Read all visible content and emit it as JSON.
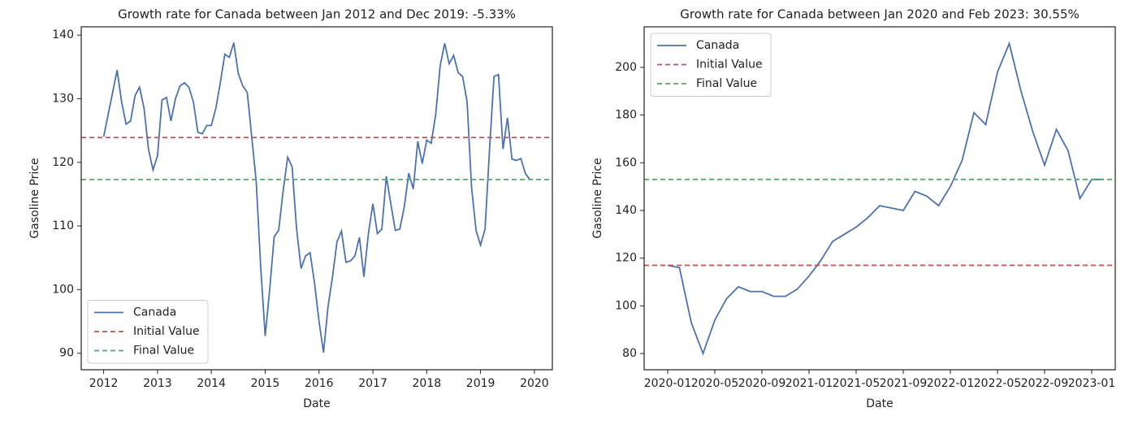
{
  "chart_data": [
    {
      "type": "line",
      "title": "Growth rate for Canada between Jan 2012 and Dec 2019: -5.33%",
      "x_label": "Date",
      "y_label": "Gasoline Price",
      "x": [
        "2012-01",
        "2012-02",
        "2012-03",
        "2012-04",
        "2012-05",
        "2012-06",
        "2012-07",
        "2012-08",
        "2012-09",
        "2012-10",
        "2012-11",
        "2012-12",
        "2013-01",
        "2013-02",
        "2013-03",
        "2013-04",
        "2013-05",
        "2013-06",
        "2013-07",
        "2013-08",
        "2013-09",
        "2013-10",
        "2013-11",
        "2013-12",
        "2014-01",
        "2014-02",
        "2014-03",
        "2014-04",
        "2014-05",
        "2014-06",
        "2014-07",
        "2014-08",
        "2014-09",
        "2014-10",
        "2014-11",
        "2014-12",
        "2015-01",
        "2015-02",
        "2015-03",
        "2015-04",
        "2015-05",
        "2015-06",
        "2015-07",
        "2015-08",
        "2015-09",
        "2015-10",
        "2015-11",
        "2015-12",
        "2016-01",
        "2016-02",
        "2016-03",
        "2016-04",
        "2016-05",
        "2016-06",
        "2016-07",
        "2016-08",
        "2016-09",
        "2016-10",
        "2016-11",
        "2016-12",
        "2017-01",
        "2017-02",
        "2017-03",
        "2017-04",
        "2017-05",
        "2017-06",
        "2017-07",
        "2017-08",
        "2017-09",
        "2017-10",
        "2017-11",
        "2017-12",
        "2018-01",
        "2018-02",
        "2018-03",
        "2018-04",
        "2018-05",
        "2018-06",
        "2018-07",
        "2018-08",
        "2018-09",
        "2018-10",
        "2018-11",
        "2018-12",
        "2019-01",
        "2019-02",
        "2019-03",
        "2019-04",
        "2019-05",
        "2019-06",
        "2019-07",
        "2019-08",
        "2019-09",
        "2019-10",
        "2019-11",
        "2019-12"
      ],
      "series": [
        {
          "name": "Canada",
          "color": "#4c72b0",
          "values": [
            124,
            127.5,
            131,
            134.5,
            129.5,
            126,
            126.5,
            130.5,
            131.8,
            128.5,
            122,
            118.8,
            121,
            129.8,
            130.2,
            126.5,
            130,
            132,
            132.5,
            131.8,
            129.5,
            124.7,
            124.5,
            125.8,
            125.8,
            128.5,
            132.5,
            137,
            136.5,
            138.8,
            134,
            132,
            131,
            124,
            117,
            103.5,
            92.7,
            100,
            108.3,
            109.3,
            115.5,
            120.8,
            119.3,
            109.5,
            103.3,
            105.3,
            105.8,
            101,
            95,
            90.1,
            97.3,
            102,
            107.5,
            109.2,
            104.3,
            104.5,
            105.3,
            108.2,
            102,
            108.8,
            113.5,
            108.8,
            109.5,
            117.8,
            113.5,
            109.3,
            109.5,
            113,
            118.3,
            115.8,
            123.3,
            119.8,
            123.5,
            123,
            127.5,
            135.2,
            138.7,
            135.5,
            136.8,
            134.1,
            133.5,
            129.5,
            116,
            109.3,
            107,
            109.5,
            122,
            133.5,
            133.8,
            122.1,
            127,
            120.5,
            120.3,
            120.6,
            118.2,
            117.3
          ]
        }
      ],
      "hlines": [
        {
          "name": "Initial Value",
          "color": "#c44e52",
          "value": 123.9
        },
        {
          "name": "Final Value",
          "color": "#55a868",
          "value": 117.3
        }
      ],
      "xlim": [
        "2011-08",
        "2020-05"
      ],
      "xticks": [
        {
          "value": "2012-01",
          "label": "2012"
        },
        {
          "value": "2013-01",
          "label": "2013"
        },
        {
          "value": "2014-01",
          "label": "2014"
        },
        {
          "value": "2015-01",
          "label": "2015"
        },
        {
          "value": "2016-01",
          "label": "2016"
        },
        {
          "value": "2017-01",
          "label": "2017"
        },
        {
          "value": "2018-01",
          "label": "2018"
        },
        {
          "value": "2019-01",
          "label": "2019"
        },
        {
          "value": "2020-01",
          "label": "2020"
        }
      ],
      "ylim": [
        87.4,
        141.3
      ],
      "yticks": [
        90,
        100,
        110,
        120,
        130,
        140
      ],
      "legend": "lower left"
    },
    {
      "type": "line",
      "title": "Growth rate for Canada between Jan 2020 and Feb 2023: 30.55%",
      "x_label": "Date",
      "y_label": "Gasoline Price",
      "x": [
        "2020-01",
        "2020-02",
        "2020-03",
        "2020-04",
        "2020-05",
        "2020-06",
        "2020-07",
        "2020-08",
        "2020-09",
        "2020-10",
        "2020-11",
        "2020-12",
        "2021-01",
        "2021-02",
        "2021-03",
        "2021-04",
        "2021-05",
        "2021-06",
        "2021-07",
        "2021-08",
        "2021-09",
        "2021-10",
        "2021-11",
        "2021-12",
        "2022-01",
        "2022-02",
        "2022-03",
        "2022-04",
        "2022-05",
        "2022-06",
        "2022-07",
        "2022-08",
        "2022-09",
        "2022-10",
        "2022-11",
        "2022-12",
        "2023-01",
        "2023-02"
      ],
      "series": [
        {
          "name": "Canada",
          "color": "#4c72b0",
          "values": [
            117,
            116,
            93,
            80,
            94,
            103,
            108,
            106,
            106,
            104,
            104,
            107,
            112.5,
            119,
            127,
            130,
            133,
            137,
            142,
            141,
            140,
            148,
            146,
            142,
            150,
            161,
            181,
            176,
            198,
            210,
            190,
            173,
            159,
            174,
            165,
            145,
            153,
            153
          ]
        }
      ],
      "hlines": [
        {
          "name": "Initial Value",
          "color": "#c44e52",
          "value": 117
        },
        {
          "name": "Final Value",
          "color": "#55a868",
          "value": 153
        }
      ],
      "xlim": [
        "2019-11",
        "2023-03"
      ],
      "xticks": [
        "2020-01",
        "2020-05",
        "2020-09",
        "2021-01",
        "2021-05",
        "2021-09",
        "2022-01",
        "2022-05",
        "2022-09",
        "2023-01"
      ],
      "ylim": [
        73.2,
        217
      ],
      "yticks": [
        80,
        100,
        120,
        140,
        160,
        180,
        200
      ],
      "legend": "upper left"
    }
  ]
}
